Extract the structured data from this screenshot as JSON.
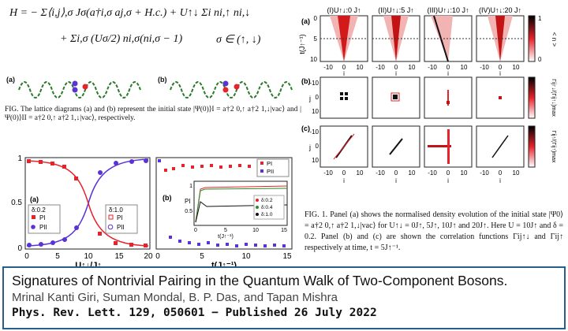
{
  "equation": {
    "line1": "H = − Σ⟨i,j⟩,σ Jσ(a†i,σ aj,σ + H.c.) + U↑↓ Σi ni,↑ ni,↓",
    "line2": "+ Σi,σ (Uσ/2) ni,σ(ni,σ − 1)",
    "line3": "σ ∈ (↑, ↓)"
  },
  "lattice": {
    "label_a": "(a)",
    "label_b": "(b)"
  },
  "small_caption": {
    "text": "FIG. The lattice diagrams (a) and (b) represent the initial state |Ψ(0)⟩I = a†2 0,↑ a†2 1,↓|vac⟩ and |Ψ(0)⟩II = a†2 0,↑ a†2 1,↓|vac⟩, respectively."
  },
  "plot_left": {
    "panel": "(a)",
    "xlabel": "U↑↓/J↑",
    "xticks": [
      "0",
      "5",
      "10",
      "15",
      "20"
    ],
    "yticks": [
      "0",
      "0.5",
      "1"
    ],
    "legend_left_title": "δ:0.2",
    "legend_left": [
      "PI",
      "PII"
    ],
    "legend_right_title": "δ:1.0",
    "legend_right": [
      "PI",
      "PII"
    ],
    "colors": {
      "red": "#e8222a",
      "blue": "#5a32d6"
    }
  },
  "plot_right": {
    "panel": "(b)",
    "xlabel": "t(J↑⁻¹)",
    "xticks": [
      "0",
      "5",
      "10",
      "15"
    ],
    "legend": [
      "PI",
      "PII"
    ],
    "inset": {
      "ylabel": "PI",
      "xlabel": "t(J↑⁻¹)",
      "yticks": [
        "0.5",
        "1"
      ],
      "xticks": [
        "0",
        "5",
        "10",
        "15"
      ],
      "legend": [
        "δ:0.2",
        "δ:0.4",
        "δ:1.0"
      ],
      "colors": [
        "#e8222a",
        "#2a8a2a",
        "#111111"
      ]
    }
  },
  "right_figure": {
    "column_titles": [
      "(I)U↑↓:0 J↑",
      "(II)U↑↓:5 J↑",
      "(III)U↑↓:10 J↑",
      "(IV)U↑↓:20 J↑"
    ],
    "row_labels": [
      "(a)",
      "(b)",
      "(c)"
    ],
    "row_a_ylabel": "t(J↑⁻¹)",
    "row_a_yticks": [
      "0",
      "5",
      "10"
    ],
    "row_bc_ylabel": "j",
    "row_bc_yticks": [
      "-10",
      "0",
      "10"
    ],
    "row_a_xlabel": "i",
    "row_c_xlabel": "i",
    "xticks": [
      "-10",
      "0",
      "10"
    ],
    "cbar_a_ticks": [
      "0",
      "1"
    ],
    "cbar_a_label": "< n >",
    "cbar_b_label": "Γij↑↓/(Γij↑↓)max",
    "cbar_c_label": "Γij↑/(Γij↑)max"
  },
  "fig1_caption": "FIG. 1. Panel (a) shows the normalised density evolution of the initial state |Ψ0⟩ = a†2 0,↑ a†2 1,↓|vac⟩ for U↑↓ = 0J↑, 5J↑, 10J↑ and 20J↑. Here U = 10J↑ and δ = 0.2. Panel (b) and (c) are shown the correlation functions Γij↑↓ and Γij↑ respectively at time, t = 5J↑⁻¹.",
  "paper": {
    "title": "Signatures of Nontrivial Pairing in the Quantum Walk of Two-Component Bosons.",
    "authors": "Mrinal Kanti Giri, Suman Mondal, B. P. Das, and Tapan Mishra",
    "journal": "Phys. Rev. Lett. 129, 050601 − Published 26 July 2022"
  }
}
